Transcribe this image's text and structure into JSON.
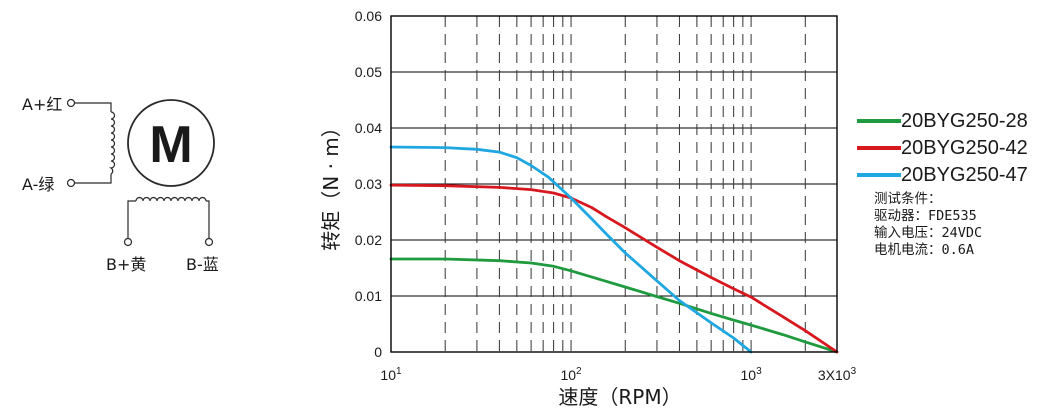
{
  "wiring": {
    "motor_label": "M",
    "terminals": {
      "a_plus": "A+红",
      "a_minus": "A-绿",
      "b_plus": "B+黄",
      "b_minus": "B-蓝"
    }
  },
  "chart_data": {
    "type": "line",
    "xscale": "log",
    "xlim": [
      10,
      3000
    ],
    "ylim": [
      0,
      0.06
    ],
    "xlabel": "速度（RPM）",
    "ylabel": "转矩（N · m）",
    "grid": true,
    "legend": "right",
    "y_ticks": [
      "0",
      "0.01",
      "0.02",
      "0.03",
      "0.04",
      "0.05",
      "0.06"
    ],
    "x_ticks": [
      {
        "value": 10,
        "base": "10",
        "exp": "1"
      },
      {
        "value": 100,
        "base": "10",
        "exp": "2"
      },
      {
        "value": 1000,
        "base": "10",
        "exp": "3"
      },
      {
        "value": 3000,
        "base": "3X10",
        "exp": "3"
      }
    ],
    "series": [
      {
        "name": "20BYG250-28",
        "color": "#1f9a3e",
        "points": [
          [
            10,
            0.0166
          ],
          [
            20,
            0.0166
          ],
          [
            40,
            0.0163
          ],
          [
            60,
            0.0159
          ],
          [
            80,
            0.0153
          ],
          [
            100,
            0.0145
          ],
          [
            150,
            0.0128
          ],
          [
            200,
            0.0116
          ],
          [
            300,
            0.0099
          ],
          [
            400,
            0.0087
          ],
          [
            600,
            0.0069
          ],
          [
            800,
            0.0057
          ],
          [
            1000,
            0.0048
          ],
          [
            1500,
            0.0031
          ],
          [
            2000,
            0.0018
          ],
          [
            3000,
            0.0
          ]
        ]
      },
      {
        "name": "20BYG250-42",
        "color": "#d7191f",
        "points": [
          [
            10,
            0.0298
          ],
          [
            20,
            0.0297
          ],
          [
            40,
            0.0294
          ],
          [
            60,
            0.029
          ],
          [
            80,
            0.0284
          ],
          [
            100,
            0.0275
          ],
          [
            130,
            0.0258
          ],
          [
            160,
            0.024
          ],
          [
            200,
            0.0222
          ],
          [
            300,
            0.0187
          ],
          [
            400,
            0.0163
          ],
          [
            600,
            0.0133
          ],
          [
            800,
            0.0113
          ],
          [
            1000,
            0.0098
          ],
          [
            1500,
            0.0063
          ],
          [
            2000,
            0.0038
          ],
          [
            3000,
            0.0
          ]
        ]
      },
      {
        "name": "20BYG250-47",
        "color": "#1fa7e1",
        "points": [
          [
            10,
            0.0366
          ],
          [
            20,
            0.0365
          ],
          [
            30,
            0.0362
          ],
          [
            40,
            0.0357
          ],
          [
            50,
            0.0347
          ],
          [
            60,
            0.0333
          ],
          [
            75,
            0.0312
          ],
          [
            100,
            0.0275
          ],
          [
            130,
            0.0238
          ],
          [
            160,
            0.0208
          ],
          [
            200,
            0.0177
          ],
          [
            300,
            0.0127
          ],
          [
            400,
            0.0092
          ],
          [
            600,
            0.0052
          ],
          [
            800,
            0.0025
          ],
          [
            1000,
            0.0
          ]
        ]
      }
    ],
    "test_conditions": [
      "测试条件：",
      "驱动器：FDE535",
      "输入电压：24VDC",
      "电机电流：0.6A"
    ]
  }
}
